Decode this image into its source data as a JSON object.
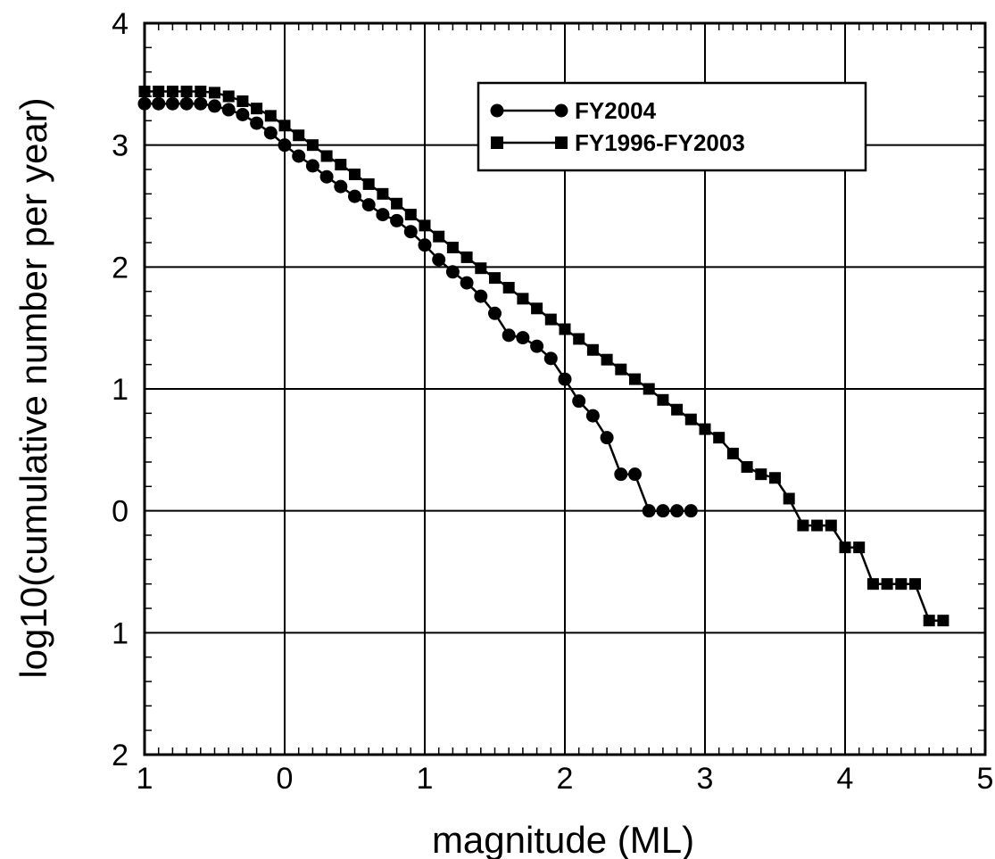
{
  "chart_data": {
    "type": "line",
    "xlabel": "magnitude (ML)",
    "ylabel": "log10(cumulative number per year)",
    "xlim": [
      -1,
      5
    ],
    "ylim": [
      -2,
      4
    ],
    "x_tick_values": [
      -1,
      0,
      1,
      2,
      3,
      4,
      5
    ],
    "x_tick_labels": [
      "1",
      "0",
      "1",
      "2",
      "3",
      "4",
      "5"
    ],
    "y_tick_values": [
      4,
      3,
      2,
      1,
      0,
      -1,
      -2
    ],
    "y_tick_labels": [
      "4",
      "3",
      "2",
      "1",
      "0",
      "1",
      "2"
    ],
    "grid": true,
    "legend_position": "top-right",
    "series": [
      {
        "name": "FY2004",
        "marker": "circle",
        "x": [
          -1.0,
          -0.9,
          -0.8,
          -0.7,
          -0.6,
          -0.5,
          -0.4,
          -0.3,
          -0.2,
          -0.1,
          0.0,
          0.1,
          0.2,
          0.3,
          0.4,
          0.5,
          0.6,
          0.7,
          0.8,
          0.9,
          1.0,
          1.1,
          1.2,
          1.3,
          1.4,
          1.5,
          1.6,
          1.7,
          1.8,
          1.9,
          2.0,
          2.1,
          2.2,
          2.3,
          2.4,
          2.5,
          2.6,
          2.7,
          2.8,
          2.9
        ],
        "y": [
          3.34,
          3.34,
          3.34,
          3.34,
          3.34,
          3.32,
          3.29,
          3.25,
          3.18,
          3.1,
          3.0,
          2.91,
          2.83,
          2.74,
          2.66,
          2.58,
          2.51,
          2.43,
          2.38,
          2.29,
          2.18,
          2.06,
          1.96,
          1.87,
          1.76,
          1.62,
          1.44,
          1.42,
          1.35,
          1.25,
          1.08,
          0.9,
          0.78,
          0.6,
          0.3,
          0.3,
          0.0,
          0.0,
          0.0,
          0.0
        ]
      },
      {
        "name": "FY1996-FY2003",
        "marker": "square",
        "x": [
          -1.0,
          -0.9,
          -0.8,
          -0.7,
          -0.6,
          -0.5,
          -0.4,
          -0.3,
          -0.2,
          -0.1,
          0.0,
          0.1,
          0.2,
          0.3,
          0.4,
          0.5,
          0.6,
          0.7,
          0.8,
          0.9,
          1.0,
          1.1,
          1.2,
          1.3,
          1.4,
          1.5,
          1.6,
          1.7,
          1.8,
          1.9,
          2.0,
          2.1,
          2.2,
          2.3,
          2.4,
          2.5,
          2.6,
          2.7,
          2.8,
          2.9,
          3.0,
          3.1,
          3.2,
          3.3,
          3.4,
          3.5,
          3.6,
          3.7,
          3.8,
          3.9,
          4.0,
          4.1,
          4.2,
          4.3,
          4.4,
          4.5,
          4.6,
          4.7
        ],
        "y": [
          3.44,
          3.44,
          3.44,
          3.44,
          3.44,
          3.43,
          3.4,
          3.36,
          3.3,
          3.24,
          3.16,
          3.08,
          3.0,
          2.91,
          2.84,
          2.76,
          2.68,
          2.6,
          2.52,
          2.43,
          2.34,
          2.25,
          2.16,
          2.08,
          1.99,
          1.91,
          1.83,
          1.74,
          1.66,
          1.57,
          1.49,
          1.41,
          1.32,
          1.24,
          1.16,
          1.08,
          1.0,
          0.91,
          0.83,
          0.75,
          0.67,
          0.6,
          0.47,
          0.36,
          0.3,
          0.27,
          0.1,
          -0.12,
          -0.12,
          -0.12,
          -0.3,
          -0.3,
          -0.6,
          -0.6,
          -0.6,
          -0.6,
          -0.9,
          -0.9
        ]
      }
    ]
  }
}
